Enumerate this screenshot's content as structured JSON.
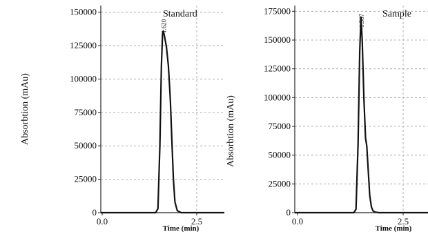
{
  "chart_data": [
    {
      "type": "line",
      "title": "Standard",
      "xlabel": "Time (min)",
      "ylabel": "Absorbtion (mAu)",
      "xlim": [
        0,
        3.2
      ],
      "ylim": [
        0,
        155000
      ],
      "x_ticks": [
        "0.0",
        "2.5"
      ],
      "y_ticks": [
        "0",
        "25000",
        "50000",
        "75000",
        "100000",
        "125000",
        "150000"
      ],
      "peak_label": "1.620",
      "grid": true,
      "series": [
        {
          "color": "#111111",
          "x": [
            0.0,
            1.3,
            1.42,
            1.48,
            1.53,
            1.57,
            1.6,
            1.62,
            1.65,
            1.7,
            1.75,
            1.8,
            1.84,
            1.88,
            1.92,
            1.98,
            2.08,
            3.2
          ],
          "y": [
            0,
            0,
            0,
            3000,
            50000,
            110000,
            134000,
            136000,
            132000,
            124000,
            110000,
            85000,
            55000,
            25000,
            8000,
            1500,
            0,
            0
          ]
        }
      ]
    },
    {
      "type": "line",
      "title": "Sample",
      "xlabel": "Time (min)",
      "ylabel": "Absorbtion (mAu)",
      "xlim": [
        0,
        3.2
      ],
      "ylim": [
        0,
        180000
      ],
      "x_ticks": [
        "0.0",
        "2.5"
      ],
      "y_ticks": [
        "0",
        "25000",
        "50000",
        "75000",
        "100000",
        "125000",
        "150000",
        "175000"
      ],
      "peak_label": "1.587",
      "grid": true,
      "series": [
        {
          "color": "#111111",
          "x": [
            0.0,
            1.3,
            1.42,
            1.47,
            1.52,
            1.56,
            1.59,
            1.62,
            1.66,
            1.7,
            1.73,
            1.76,
            1.8,
            1.84,
            1.88,
            1.93,
            2.02,
            3.2
          ],
          "y": [
            0,
            0,
            0,
            3000,
            60000,
            140000,
            170000,
            150000,
            100000,
            65000,
            58000,
            40000,
            15000,
            5000,
            1500,
            500,
            0,
            0
          ]
        }
      ]
    }
  ]
}
